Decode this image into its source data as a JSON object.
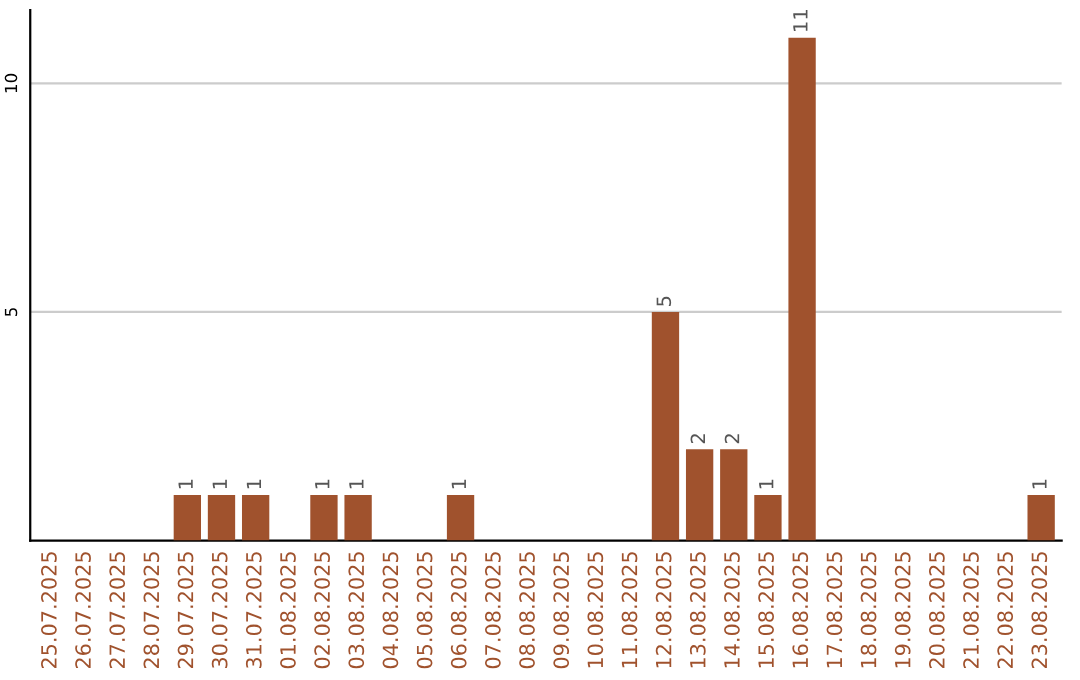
{
  "chart_data": {
    "type": "bar",
    "categories": [
      "25.07.2025",
      "26.07.2025",
      "27.07.2025",
      "28.07.2025",
      "29.07.2025",
      "30.07.2025",
      "31.07.2025",
      "01.08.2025",
      "02.08.2025",
      "03.08.2025",
      "04.08.2025",
      "05.08.2025",
      "06.08.2025",
      "07.08.2025",
      "08.08.2025",
      "09.08.2025",
      "10.08.2025",
      "11.08.2025",
      "12.08.2025",
      "13.08.2025",
      "14.08.2025",
      "15.08.2025",
      "16.08.2025",
      "17.08.2025",
      "18.08.2025",
      "19.08.2025",
      "20.08.2025",
      "21.08.2025",
      "22.08.2025",
      "23.08.2025"
    ],
    "values": [
      0,
      0,
      0,
      0,
      1,
      1,
      1,
      0,
      1,
      1,
      0,
      0,
      1,
      0,
      0,
      0,
      0,
      0,
      5,
      2,
      2,
      1,
      11,
      0,
      0,
      0,
      0,
      0,
      0,
      1
    ],
    "value_labels": [
      null,
      null,
      null,
      null,
      "1",
      "1",
      "1",
      null,
      "1",
      "1",
      null,
      null,
      "1",
      null,
      null,
      null,
      null,
      null,
      "5",
      "2",
      "2",
      "1",
      "11",
      null,
      null,
      null,
      null,
      null,
      null,
      "1"
    ],
    "color": "#a0522d",
    "ylim": [
      0,
      11.6
    ],
    "yticks": [
      5,
      10
    ],
    "grid": "y",
    "legend": false
  }
}
